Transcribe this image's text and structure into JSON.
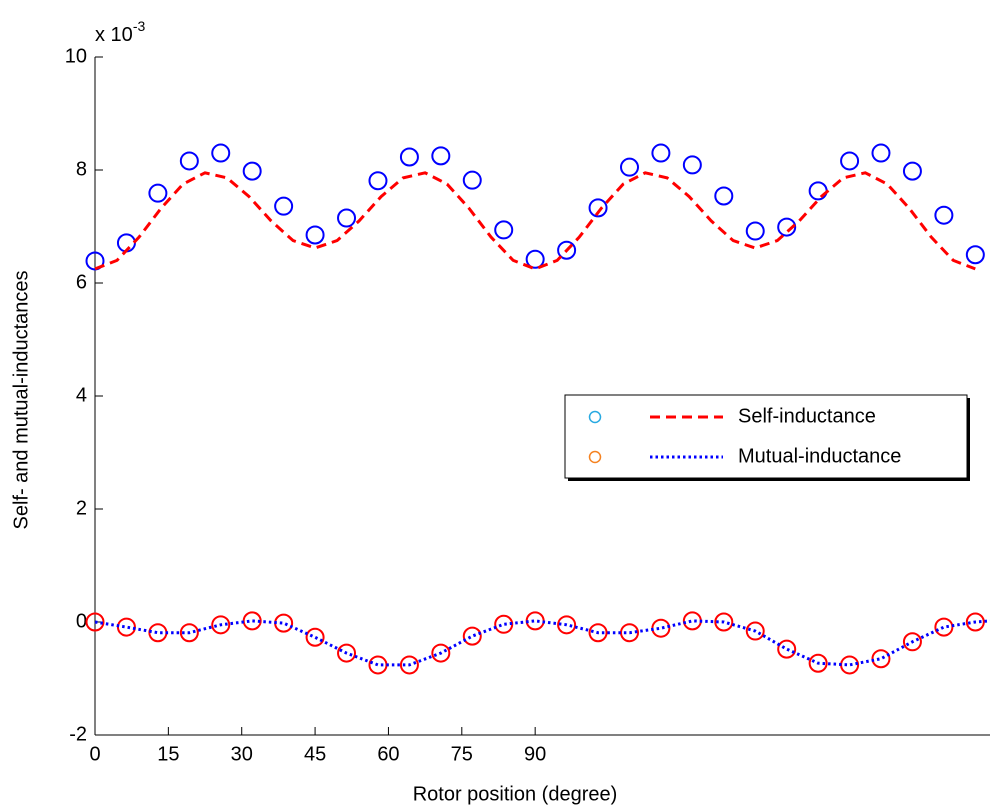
{
  "chart_data": {
    "type": "line",
    "xlabel": "Rotor position (degree)",
    "ylabel": "Self- and mutual-inductances",
    "y_multiplier": {
      "base": "x 10",
      "exponent": "-3"
    },
    "xlim": [
      0,
      183
    ],
    "ylim": [
      -2,
      10
    ],
    "xticks": [
      0,
      15,
      30,
      45,
      60,
      75,
      90
    ],
    "yticks": [
      -2,
      0,
      2,
      4,
      6,
      8,
      10
    ],
    "series": [
      {
        "style": "markers",
        "color": "#0000ff",
        "x": [
          0,
          6.43,
          12.86,
          19.29,
          25.71,
          32.14,
          38.57,
          45,
          51.43,
          57.86,
          64.29,
          70.71,
          77.14,
          83.57,
          90,
          96.43,
          102.86,
          109.29,
          115.71,
          122.14,
          128.57,
          135,
          141.43,
          147.86,
          154.29,
          160.71,
          167.14,
          173.57,
          180
        ],
        "values": [
          6.39,
          6.71,
          7.59,
          8.16,
          8.3,
          7.98,
          7.36,
          6.85,
          7.15,
          7.81,
          8.23,
          8.25,
          7.82,
          6.94,
          6.42,
          6.58,
          7.33,
          8.05,
          8.3,
          8.09,
          7.54,
          6.92,
          6.99,
          7.63,
          8.16,
          8.3,
          7.98,
          7.2,
          6.5
        ]
      },
      {
        "style": "dashed",
        "color": "#ff0000",
        "name": "Self-inductance",
        "x": [
          0,
          4.5,
          9,
          13.5,
          18,
          22.5,
          27,
          31.5,
          36,
          40.5,
          45,
          49.5,
          54,
          58.5,
          63,
          67.5,
          72,
          76.5,
          81,
          85.5,
          90,
          94.5,
          99,
          103.5,
          108,
          112.5,
          117,
          121.5,
          126,
          130.5,
          135,
          139.5,
          144,
          148.5,
          153,
          157.5,
          162,
          166.5,
          171,
          175.5,
          180
        ],
        "values": [
          6.25,
          6.4,
          6.81,
          7.32,
          7.75,
          7.95,
          7.86,
          7.53,
          7.1,
          6.75,
          6.62,
          6.75,
          7.1,
          7.53,
          7.86,
          7.95,
          7.75,
          7.32,
          6.81,
          6.4,
          6.25,
          6.4,
          6.81,
          7.32,
          7.75,
          7.95,
          7.86,
          7.53,
          7.1,
          6.75,
          6.62,
          6.75,
          7.1,
          7.53,
          7.86,
          7.95,
          7.75,
          7.32,
          6.81,
          6.4,
          6.25
        ]
      },
      {
        "style": "markers",
        "color": "#ff0000",
        "x": [
          0,
          6.43,
          12.86,
          19.29,
          25.71,
          32.14,
          38.57,
          45,
          51.43,
          57.86,
          64.29,
          70.71,
          77.14,
          83.57,
          90,
          96.43,
          102.86,
          109.29,
          115.71,
          122.14,
          128.57,
          135,
          141.43,
          147.86,
          154.29,
          160.71,
          167.14,
          173.57,
          180
        ],
        "values": [
          0,
          -0.09,
          -0.19,
          -0.19,
          -0.05,
          0.02,
          -0.02,
          -0.27,
          -0.55,
          -0.76,
          -0.76,
          -0.55,
          -0.25,
          -0.04,
          0.02,
          -0.05,
          -0.19,
          -0.19,
          -0.11,
          0.02,
          0,
          -0.16,
          -0.48,
          -0.73,
          -0.76,
          -0.65,
          -0.35,
          -0.09,
          0
        ]
      },
      {
        "style": "dotted",
        "color": "#0000ff",
        "name": "Mutual-inductance",
        "x": [
          0,
          6.43,
          12.86,
          19.29,
          25.71,
          32.14,
          38.57,
          45,
          51.43,
          57.86,
          64.29,
          70.71,
          77.14,
          83.57,
          90,
          96.43,
          102.86,
          109.29,
          115.71,
          122.14,
          128.57,
          135,
          141.43,
          147.86,
          154.29,
          160.71,
          167.14,
          173.57,
          180,
          183
        ],
        "values": [
          0,
          -0.09,
          -0.19,
          -0.19,
          -0.05,
          0.02,
          -0.02,
          -0.27,
          -0.55,
          -0.76,
          -0.76,
          -0.55,
          -0.25,
          -0.04,
          0.02,
          -0.05,
          -0.19,
          -0.19,
          -0.11,
          0.02,
          0,
          -0.16,
          -0.48,
          -0.73,
          -0.76,
          -0.65,
          -0.35,
          -0.09,
          0,
          0.02
        ]
      }
    ],
    "legend": {
      "position": "center right",
      "marker_colors": [
        "#27a9e1",
        "#f58220"
      ],
      "series": [
        1,
        3
      ]
    }
  }
}
